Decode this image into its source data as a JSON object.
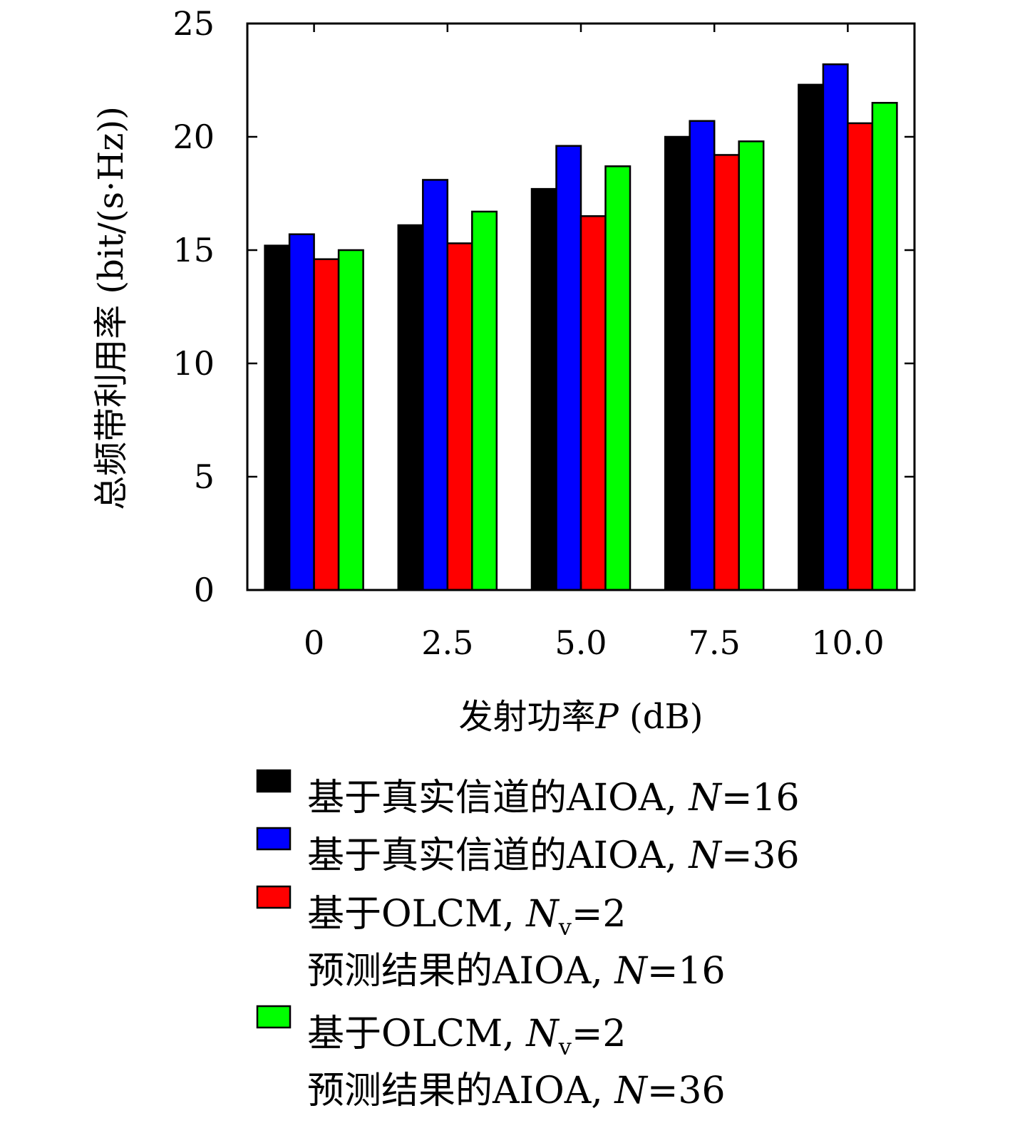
{
  "chart_data": {
    "type": "bar",
    "xlabel": {
      "prefix": "发射功率",
      "var": "P",
      "unit": " (dB)"
    },
    "ylabel": "总频带利用率 (bit/(s·Hz))",
    "ylim": [
      0,
      25
    ],
    "yticks": [
      "0",
      "5",
      "10",
      "15",
      "20",
      "25"
    ],
    "ytick_values": [
      0,
      5,
      10,
      15,
      20,
      25
    ],
    "categories": [
      "0",
      "2.5",
      "5.0",
      "7.5",
      "10.0"
    ],
    "series": [
      {
        "name": "基于真实信道的AIOA, N=16",
        "color": "#000000",
        "values": [
          15.2,
          16.1,
          17.7,
          20.0,
          22.3
        ]
      },
      {
        "name": "基于真实信道的AIOA, N=36",
        "color": "#0000ff",
        "values": [
          15.7,
          18.1,
          19.6,
          20.7,
          23.2
        ]
      },
      {
        "name": "基于OLCM, Nv=2 预测结果的AIOA, N=16",
        "color": "#ff0000",
        "values": [
          14.6,
          15.3,
          16.5,
          19.2,
          20.6
        ]
      },
      {
        "name": "基于OLCM, Nv=2 预测结果的AIOA, N=36",
        "color": "#00ff00",
        "values": [
          15.0,
          16.7,
          18.7,
          19.8,
          21.5
        ]
      }
    ],
    "legend": {
      "placement": "bottom",
      "entries": [
        {
          "color": "#000000",
          "lines": [
            [
              {
                "t": "基于真实信道的AIOA, "
              },
              {
                "t": "N",
                "i": true
              },
              {
                "t": "=16"
              }
            ]
          ]
        },
        {
          "color": "#0000ff",
          "lines": [
            [
              {
                "t": "基于真实信道的AIOA, "
              },
              {
                "t": "N",
                "i": true
              },
              {
                "t": "=36"
              }
            ]
          ]
        },
        {
          "color": "#ff0000",
          "lines": [
            [
              {
                "t": "基于OLCM, "
              },
              {
                "t": "N",
                "i": true
              },
              {
                "t": "v",
                "sub": true
              },
              {
                "t": "=2"
              }
            ],
            [
              {
                "t": "预测结果的AIOA, "
              },
              {
                "t": "N",
                "i": true
              },
              {
                "t": "=16"
              }
            ]
          ]
        },
        {
          "color": "#00ff00",
          "lines": [
            [
              {
                "t": "基于OLCM, "
              },
              {
                "t": "N",
                "i": true
              },
              {
                "t": "v",
                "sub": true
              },
              {
                "t": "=2"
              }
            ],
            [
              {
                "t": "预测结果的AIOA, "
              },
              {
                "t": "N",
                "i": true
              },
              {
                "t": "=36"
              }
            ]
          ]
        }
      ]
    },
    "grid": false
  }
}
